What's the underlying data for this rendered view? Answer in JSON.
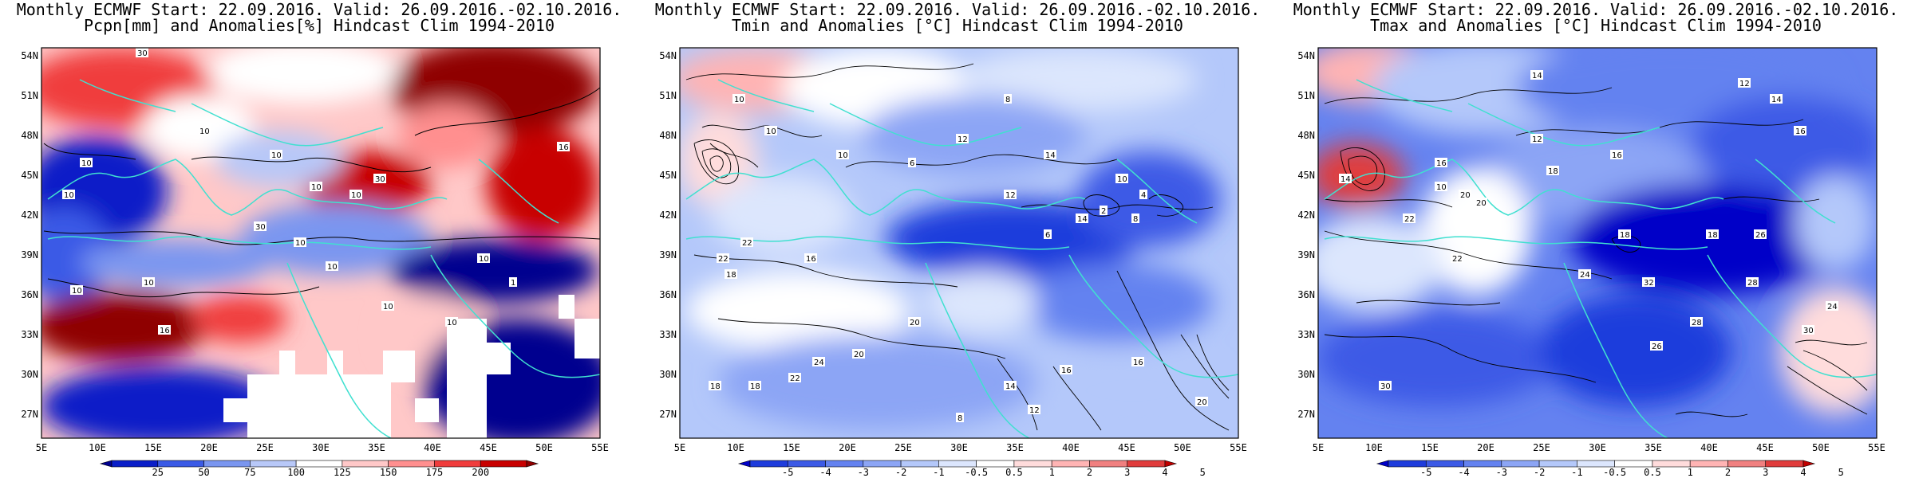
{
  "panels": [
    {
      "title_line1": "Monthly ECMWF Start: 22.09.2016. Valid: 26.09.2016.-02.10.2016.",
      "title_line2": "Pcpn[mm] and Anomalies[%] Hindcast Clim 1994-2010",
      "lat_labels": [
        "54N",
        "51N",
        "48N",
        "45N",
        "42N",
        "39N",
        "36N",
        "33N",
        "30N",
        "27N"
      ],
      "lon_labels": [
        "5E",
        "10E",
        "15E",
        "20E",
        "25E",
        "30E",
        "35E",
        "40E",
        "45E",
        "50E",
        "55E"
      ],
      "colorbar_labels": [
        "25",
        "50",
        "75",
        "100",
        "125",
        "150",
        "175",
        "200"
      ],
      "colorbar_colors": [
        "#00008f",
        "#0a1ec8",
        "#3a5ae6",
        "#7a96f0",
        "#b8c8f8",
        "#ffffff",
        "#ffc8c8",
        "#ff8f8f",
        "#f03c3c",
        "#c80000",
        "#8f0000"
      ],
      "contour_labels": [
        "30",
        "10",
        "10",
        "10",
        "10",
        "10",
        "30",
        "10",
        "10",
        "10",
        "10",
        "10",
        "16",
        "16",
        "10",
        "10",
        "1",
        "10",
        "30"
      ]
    },
    {
      "title_line1": "Monthly ECMWF Start: 22.09.2016. Valid: 26.09.2016.-02.10.2016.",
      "title_line2": "Tmin and Anomalies [°C] Hindcast Clim 1994-2010",
      "lat_labels": [
        "54N",
        "51N",
        "48N",
        "45N",
        "42N",
        "39N",
        "36N",
        "33N",
        "30N",
        "27N"
      ],
      "lon_labels": [
        "5E",
        "10E",
        "15E",
        "20E",
        "25E",
        "30E",
        "35E",
        "40E",
        "45E",
        "50E",
        "55E"
      ],
      "colorbar_labels": [
        "-5",
        "-4",
        "-3",
        "-2",
        "-1",
        "-0.5",
        "0.5",
        "1",
        "2",
        "3",
        "4",
        "5"
      ],
      "colorbar_colors": [
        "#0000c8",
        "#1e3cdc",
        "#3c5ae6",
        "#6482f0",
        "#8ca5f5",
        "#b4c8fa",
        "#dce6fd",
        "#ffffff",
        "#ffdcdc",
        "#ffb4b4",
        "#f08080",
        "#e03c3c",
        "#c00000"
      ],
      "contour_labels": [
        "10",
        "10",
        "8",
        "6",
        "12",
        "10",
        "14",
        "16",
        "18",
        "20",
        "22",
        "22",
        "20",
        "18",
        "16",
        "14",
        "12",
        "10",
        "8",
        "6",
        "4",
        "2",
        "24",
        "18",
        "16",
        "14",
        "12",
        "8",
        "20",
        "22"
      ]
    },
    {
      "title_line1": "Monthly ECMWF Start: 22.09.2016. Valid: 26.09.2016.-02.10.2016.",
      "title_line2": "Tmax and Anomalies [°C] Hindcast Clim 1994-2010",
      "lat_labels": [
        "54N",
        "51N",
        "48N",
        "45N",
        "42N",
        "39N",
        "36N",
        "33N",
        "30N",
        "27N"
      ],
      "lon_labels": [
        "5E",
        "10E",
        "15E",
        "20E",
        "25E",
        "30E",
        "35E",
        "40E",
        "45E",
        "50E",
        "55E"
      ],
      "colorbar_labels": [
        "-5",
        "-4",
        "-3",
        "-2",
        "-1",
        "-0.5",
        "0.5",
        "1",
        "2",
        "3",
        "4",
        "5"
      ],
      "colorbar_colors": [
        "#0000c8",
        "#1e3cdc",
        "#3c5ae6",
        "#6482f0",
        "#8ca5f5",
        "#b4c8fa",
        "#dce6fd",
        "#ffffff",
        "#ffdcdc",
        "#ffb4b4",
        "#f08080",
        "#e03c3c",
        "#c00000"
      ],
      "contour_labels": [
        "14",
        "12",
        "14",
        "16",
        "16",
        "18",
        "18",
        "20",
        "22",
        "24",
        "26",
        "28",
        "30",
        "32",
        "30",
        "28",
        "26",
        "24",
        "22",
        "20",
        "18",
        "16",
        "14",
        "12",
        "10"
      ]
    }
  ]
}
